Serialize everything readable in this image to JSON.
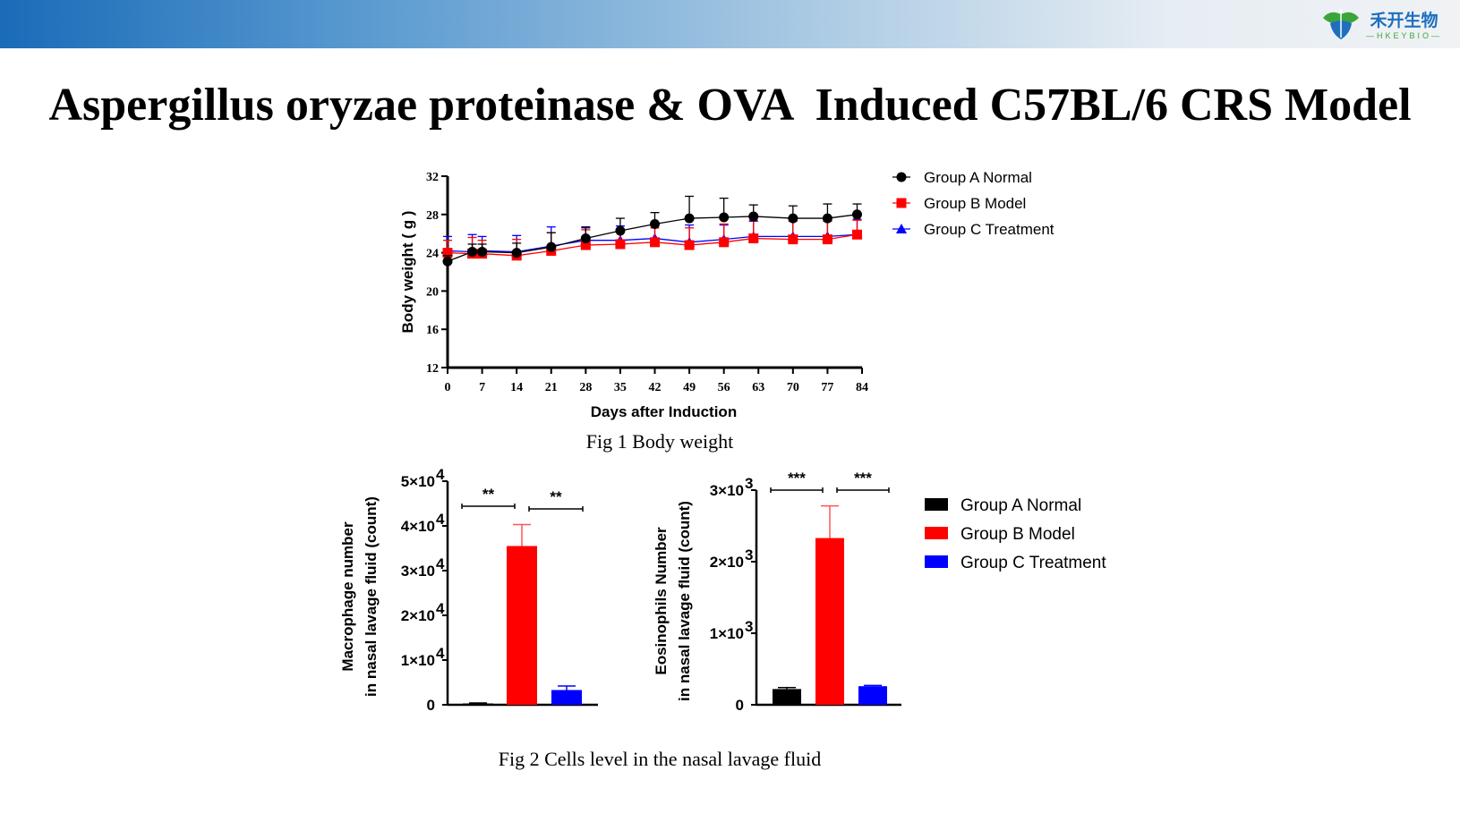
{
  "header": {
    "logo_cn": "禾开生物",
    "logo_en": "—HKEYBIO—"
  },
  "title": "Aspergillus oryzae proteinase & OVA  Induced C57BL/6 CRS Model",
  "colors": {
    "group_a": "#000000",
    "group_b": "#ff0000",
    "group_c": "#0000ff"
  },
  "chart_data": [
    {
      "type": "line",
      "caption": "Fig 1 Body weight",
      "xlabel": "Days after Induction",
      "ylabel": "Body weight ( g )",
      "xlim": [
        0,
        84
      ],
      "ylim": [
        12,
        32
      ],
      "xticks": [
        0,
        7,
        14,
        21,
        28,
        35,
        42,
        49,
        56,
        63,
        70,
        77,
        84
      ],
      "yticks": [
        12,
        16,
        20,
        24,
        28,
        32
      ],
      "legend": "right",
      "x": [
        0,
        5,
        7,
        14,
        21,
        28,
        35,
        42,
        49,
        56,
        62,
        70,
        77,
        83
      ],
      "series": [
        {
          "name": "Group A Normal",
          "marker": "circle",
          "color": "#000000",
          "values": [
            23.1,
            24.1,
            24.1,
            24.0,
            24.6,
            25.5,
            26.3,
            27.0,
            27.6,
            27.7,
            27.8,
            27.6,
            27.6,
            28.0
          ],
          "error": [
            0.6,
            0.8,
            0.8,
            1.0,
            1.5,
            1.2,
            1.3,
            1.2,
            2.3,
            2.0,
            1.2,
            1.3,
            1.5,
            1.1
          ]
        },
        {
          "name": "Group B Model",
          "marker": "square",
          "color": "#ff0000",
          "values": [
            24.0,
            23.9,
            23.9,
            23.7,
            24.2,
            24.8,
            24.9,
            25.1,
            24.8,
            25.1,
            25.5,
            25.4,
            25.4,
            25.9
          ],
          "error": [
            1.3,
            1.7,
            1.4,
            1.7,
            1.9,
            1.6,
            1.5,
            1.5,
            1.8,
            1.9,
            1.9,
            1.9,
            1.9,
            1.5
          ]
        },
        {
          "name": "Group C Treatment",
          "marker": "triangle",
          "color": "#0000ff",
          "values": [
            24.2,
            24.1,
            24.2,
            24.1,
            24.7,
            25.3,
            25.3,
            25.5,
            25.1,
            25.4,
            25.7,
            25.7,
            25.7,
            25.9
          ],
          "error": [
            1.5,
            1.8,
            1.5,
            1.7,
            2.0,
            1.3,
            1.5,
            1.4,
            1.8,
            1.5,
            1.6,
            1.6,
            1.6,
            1.6
          ]
        }
      ]
    },
    {
      "type": "bar",
      "caption": "Fig 2  Cells level in the nasal lavage fluid",
      "ylabel": [
        "Macrophage number",
        "in nasal lavage fluid (count)"
      ],
      "ylim": [
        0,
        50000
      ],
      "yticks": [
        {
          "v": 0,
          "base": "0",
          "exp": ""
        },
        {
          "v": 10000,
          "base": "1×10",
          "exp": "4"
        },
        {
          "v": 20000,
          "base": "2×10",
          "exp": "4"
        },
        {
          "v": 30000,
          "base": "3×10",
          "exp": "4"
        },
        {
          "v": 40000,
          "base": "4×10",
          "exp": "4"
        },
        {
          "v": 50000,
          "base": "5×10",
          "exp": "4"
        }
      ],
      "categories": [
        "Group A Normal",
        "Group B Model",
        "Group C  Treatment"
      ],
      "values": [
        300,
        35500,
        3300
      ],
      "error": [
        100,
        4800,
        900
      ],
      "significance": [
        {
          "from": 0,
          "to": 1,
          "label": "**"
        },
        {
          "from": 1,
          "to": 2,
          "label": "**"
        }
      ]
    },
    {
      "type": "bar",
      "ylabel": [
        "Eosinophils Number",
        "in nasal lavage fluid (count)"
      ],
      "ylim": [
        0,
        3000
      ],
      "yticks": [
        {
          "v": 0,
          "base": "0",
          "exp": ""
        },
        {
          "v": 1000,
          "base": "1×10",
          "exp": "3"
        },
        {
          "v": 2000,
          "base": "2×10",
          "exp": "3"
        },
        {
          "v": 3000,
          "base": "3×10",
          "exp": "3"
        }
      ],
      "categories": [
        "Group A Normal",
        "Group B Model",
        "Group C  Treatment"
      ],
      "values": [
        220,
        2330,
        260
      ],
      "error": [
        20,
        450,
        10
      ],
      "significance": [
        {
          "from": 0,
          "to": 1,
          "label": "***"
        },
        {
          "from": 1,
          "to": 2,
          "label": "***"
        }
      ],
      "legend": "right"
    }
  ]
}
